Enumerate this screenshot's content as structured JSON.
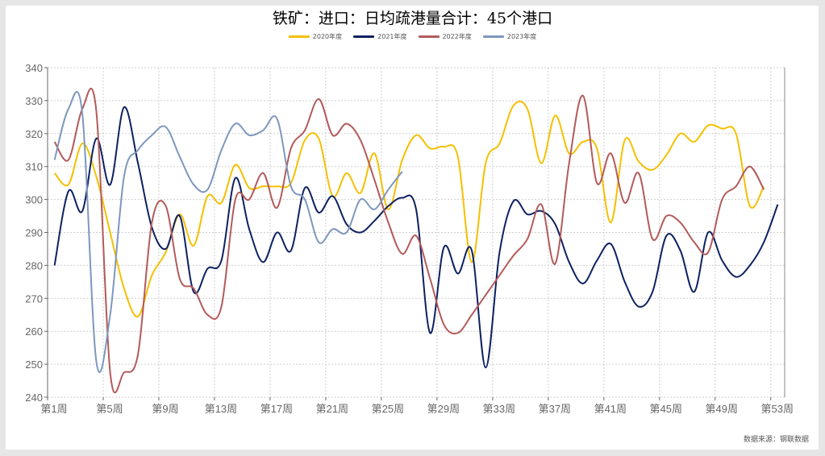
{
  "title": "铁矿：进口：日均疏港量合计：45个港口",
  "source": "数据来源：钢联数据",
  "legend": [
    {
      "label": "2020年度",
      "color": "#F5C000"
    },
    {
      "label": "2021年度",
      "color": "#0D2161"
    },
    {
      "label": "2022年度",
      "color": "#B35A5A"
    },
    {
      "label": "2023年度",
      "color": "#7D97BE"
    }
  ],
  "chart_data": {
    "type": "line",
    "title": "铁矿：进口：日均疏港量合计：45个港口",
    "xlabel": "",
    "ylabel": "",
    "ylim": [
      240,
      340
    ],
    "yticks": [
      240,
      250,
      260,
      270,
      280,
      290,
      300,
      310,
      320,
      330,
      340
    ],
    "grid": true,
    "legend_position": "top",
    "smooth": true,
    "categories": [
      "第1周",
      "第2周",
      "第3周",
      "第4周",
      "第5周",
      "第6周",
      "第7周",
      "第8周",
      "第9周",
      "第10周",
      "第11周",
      "第12周",
      "第13周",
      "第14周",
      "第15周",
      "第16周",
      "第17周",
      "第18周",
      "第19周",
      "第20周",
      "第21周",
      "第22周",
      "第23周",
      "第24周",
      "第25周",
      "第26周",
      "第27周",
      "第28周",
      "第29周",
      "第30周",
      "第31周",
      "第32周",
      "第33周",
      "第34周",
      "第35周",
      "第36周",
      "第37周",
      "第38周",
      "第39周",
      "第40周",
      "第41周",
      "第42周",
      "第43周",
      "第44周",
      "第45周",
      "第46周",
      "第47周",
      "第48周",
      "第49周",
      "第50周",
      "第51周",
      "第52周",
      "第53周"
    ],
    "xtick_labels": [
      "第1周",
      "第5周",
      "第9周",
      "第13周",
      "第17周",
      "第21周",
      "第25周",
      "第29周",
      "第33周",
      "第37周",
      "第41周",
      "第45周",
      "第49周",
      "第53周"
    ],
    "series": [
      {
        "name": "2020年度",
        "color": "#F5C000",
        "values": [
          308,
          304.5,
          317,
          307,
          290,
          273,
          264.5,
          277,
          284,
          295.5,
          286,
          301,
          299,
          310.5,
          303.5,
          304,
          304,
          305,
          318,
          318.5,
          301,
          308,
          302,
          314,
          297,
          312,
          319.5,
          315.5,
          316,
          313,
          281,
          311,
          317,
          328.5,
          327.5,
          311,
          325.5,
          314,
          317.5,
          315.5,
          293,
          318,
          311.5,
          309,
          313.5,
          320,
          317.5,
          322.5,
          321.5,
          320,
          298,
          304,
          null
        ]
      },
      {
        "name": "2021年度",
        "color": "#0D2161",
        "values": [
          280,
          302.5,
          296.5,
          318.5,
          304.5,
          328,
          311,
          291.5,
          285,
          295,
          272,
          279,
          281.5,
          306.5,
          291,
          281,
          290,
          284.5,
          303.5,
          296,
          301,
          292.5,
          290,
          293.5,
          298,
          300.5,
          297,
          259.5,
          285.5,
          277.5,
          284.5,
          249,
          284,
          299.5,
          295.5,
          296.5,
          292.5,
          281,
          274.5,
          281.5,
          286.5,
          275,
          267.5,
          272,
          289,
          284.5,
          272,
          290,
          281.5,
          276.5,
          280,
          287,
          298.5
        ]
      },
      {
        "name": "2022年度",
        "color": "#B35A5A",
        "values": [
          317.5,
          312,
          327.5,
          327,
          247.5,
          247.5,
          253,
          293,
          298,
          276,
          273,
          265,
          267.5,
          300,
          300,
          308,
          297.5,
          315.5,
          321,
          330.5,
          319.5,
          323,
          318,
          306,
          293,
          283.5,
          289,
          276,
          262,
          259.5,
          265,
          271,
          277,
          283,
          288,
          298.5,
          280.5,
          311,
          331.5,
          305,
          314,
          299,
          308,
          288,
          295,
          293,
          287,
          284,
          300,
          304,
          310,
          303,
          null
        ]
      },
      {
        "name": "2023年度",
        "color": "#7D97BE",
        "values": [
          312,
          327.5,
          326,
          251,
          265,
          307,
          315,
          319.5,
          322,
          313,
          304.5,
          303,
          315,
          323,
          319.5,
          321,
          324.5,
          304,
          300,
          287,
          291,
          290,
          300,
          297,
          303,
          308.5,
          null,
          null,
          null,
          null,
          null,
          null,
          null,
          null,
          null,
          null,
          null,
          null,
          null,
          null,
          null,
          null,
          null,
          null,
          null,
          null,
          null,
          null,
          null,
          null,
          null,
          null,
          null
        ]
      }
    ]
  }
}
